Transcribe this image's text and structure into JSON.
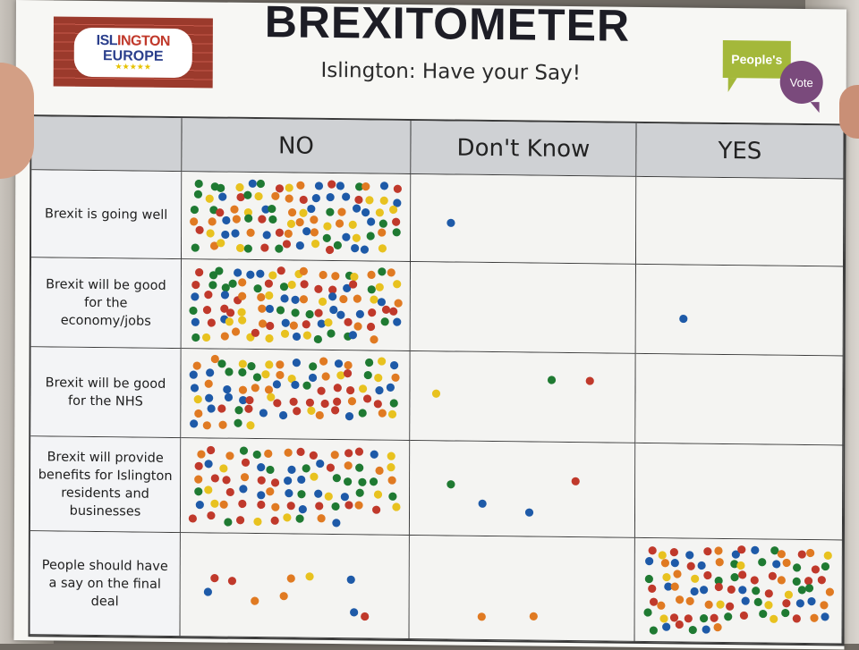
{
  "board": {
    "title": "BREXITOMETER",
    "subtitle": "Islington: Have your Say!",
    "logo_left": {
      "line1_a": "ISL",
      "line1_b": "INGTON",
      "line2": "EUROPE"
    },
    "logo_right": {
      "green_text": "People's",
      "purple_text": "Vote"
    }
  },
  "columns": [
    "",
    "NO",
    "Don't Know",
    "YES"
  ],
  "rows": [
    {
      "label": "Brexit is going well",
      "counts": {
        "no": 95,
        "dont_know": 1,
        "yes": 0
      }
    },
    {
      "label": "Brexit will be good for the economy/jobs",
      "counts": {
        "no": 100,
        "dont_know": 0,
        "yes": 1
      }
    },
    {
      "label": "Brexit will be good for the NHS",
      "counts": {
        "no": 80,
        "dont_know": 3,
        "yes": 0
      }
    },
    {
      "label": "Brexit will provide benefits for Islington residents and businesses",
      "counts": {
        "no": 80,
        "dont_know": 4,
        "yes": 0
      }
    },
    {
      "label": "People should have a say on the final deal",
      "counts": {
        "no": 10,
        "dont_know": 2,
        "yes": 90
      }
    }
  ],
  "dot_colors": [
    "#c0392b",
    "#e8c21f",
    "#1e5aa8",
    "#1f7a32",
    "#e07a22"
  ]
}
